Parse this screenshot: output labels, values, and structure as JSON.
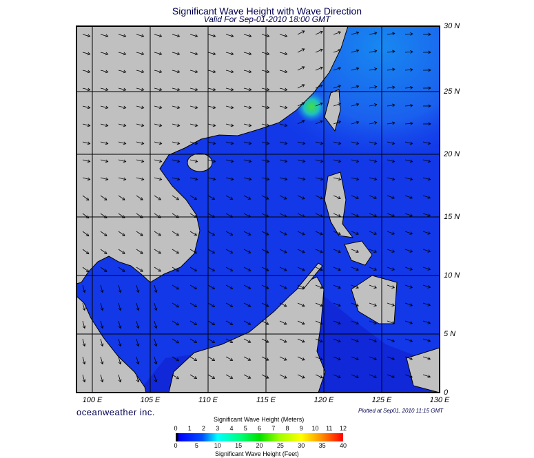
{
  "title": "Significant Wave Height with Wave Direction",
  "subtitle": "Valid For Sep-01-2010 18:00 GMT",
  "lat_labels": [
    "30 N",
    "25 N",
    "20 N",
    "15 N",
    "10 N",
    "5 N",
    "0"
  ],
  "lon_labels": [
    "100 E",
    "105 E",
    "110 E",
    "115 E",
    "120 E",
    "125 E",
    "130 E"
  ],
  "brand": "oceanweather inc.",
  "plotted": "Plotted at Sep01, 2010 11:15 GMT",
  "colorbar": {
    "meters_title": "Significant Wave Height (Meters)",
    "meters_ticks": [
      "0",
      "1",
      "2",
      "3",
      "4",
      "5",
      "6",
      "7",
      "8",
      "9",
      "10",
      "11",
      "12"
    ],
    "feet_title": "Significant Wave Height (Feet)",
    "feet_ticks": [
      "0",
      "5",
      "10",
      "15",
      "20",
      "25",
      "30",
      "35",
      "40"
    ]
  },
  "colors": {
    "land": "#c0c0c0",
    "ocean_low": "#1030e8",
    "ocean_mid": "#1878f0",
    "peak": "#40e040"
  }
}
